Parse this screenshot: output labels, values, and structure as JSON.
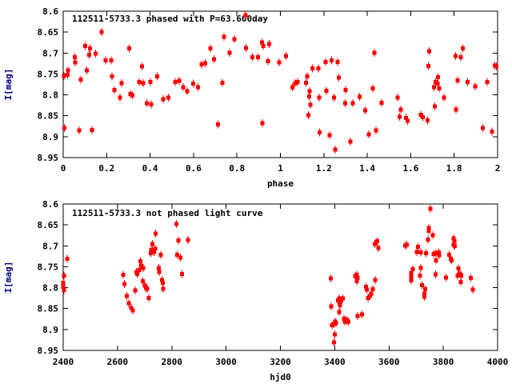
{
  "figure": {
    "background": "#ffffff",
    "point_color": "#ff0000",
    "axis_color": "#000000",
    "text_color": "#000000",
    "ylabel_color": "#000080"
  },
  "chart_data": [
    {
      "type": "scatter",
      "title": "112511-5733.3 phased with P=63.600day",
      "xlabel": "phase",
      "ylabel": "I[mag]",
      "xlim": [
        0,
        2
      ],
      "ylim_top": 8.6,
      "ylim_bottom": 8.95,
      "grid": false,
      "legend": "none",
      "marker": "red-square-with-vertical-errorbar",
      "xticks": [
        {
          "v": 0,
          "label": "0"
        },
        {
          "v": 0.2,
          "label": "0.2"
        },
        {
          "v": 0.4,
          "label": "0.4"
        },
        {
          "v": 0.6,
          "label": "0.6"
        },
        {
          "v": 0.8,
          "label": "0.8"
        },
        {
          "v": 1,
          "label": "1"
        },
        {
          "v": 1.2,
          "label": "1.2"
        },
        {
          "v": 1.4,
          "label": "1.4"
        },
        {
          "v": 1.6,
          "label": "1.6"
        },
        {
          "v": 1.8,
          "label": "1.8"
        },
        {
          "v": 2,
          "label": "2"
        }
      ],
      "yticks": [
        {
          "v": 8.6,
          "label": "8.6"
        },
        {
          "v": 8.65,
          "label": "8.65"
        },
        {
          "v": 8.7,
          "label": "8.7"
        },
        {
          "v": 8.75,
          "label": "8.75"
        },
        {
          "v": 8.8,
          "label": "8.8"
        },
        {
          "v": 8.85,
          "label": "8.85"
        },
        {
          "v": 8.9,
          "label": "8.9"
        },
        {
          "v": 8.95,
          "label": "8.95"
        }
      ],
      "points": [
        [
          0.004,
          8.755
        ],
        [
          0.006,
          8.879
        ],
        [
          0.02,
          8.752
        ],
        [
          0.022,
          8.742
        ],
        [
          0.054,
          8.71
        ],
        [
          0.056,
          8.722
        ],
        [
          0.074,
          8.885
        ],
        [
          0.081,
          8.764
        ],
        [
          0.101,
          8.683
        ],
        [
          0.108,
          8.742
        ],
        [
          0.119,
          8.704
        ],
        [
          0.123,
          8.689
        ],
        [
          0.133,
          8.884
        ],
        [
          0.15,
          8.701
        ],
        [
          0.176,
          8.65
        ],
        [
          0.196,
          8.718
        ],
        [
          0.221,
          8.718
        ],
        [
          0.224,
          8.756
        ],
        [
          0.236,
          8.788
        ],
        [
          0.261,
          8.807
        ],
        [
          0.268,
          8.772
        ],
        [
          0.303,
          8.689
        ],
        [
          0.31,
          8.798
        ],
        [
          0.319,
          8.801
        ],
        [
          0.35,
          8.769
        ],
        [
          0.362,
          8.732
        ],
        [
          0.368,
          8.772
        ],
        [
          0.384,
          8.82
        ],
        [
          0.401,
          8.769
        ],
        [
          0.405,
          8.823
        ],
        [
          0.432,
          8.756
        ],
        [
          0.46,
          8.81
        ],
        [
          0.485,
          8.807
        ],
        [
          0.516,
          8.769
        ],
        [
          0.534,
          8.766
        ],
        [
          0.552,
          8.782
        ],
        [
          0.571,
          8.791
        ],
        [
          0.598,
          8.773
        ],
        [
          0.62,
          8.782
        ],
        [
          0.638,
          8.727
        ],
        [
          0.654,
          8.724
        ],
        [
          0.678,
          8.689
        ],
        [
          0.694,
          8.715
        ],
        [
          0.712,
          8.871
        ],
        [
          0.733,
          8.771
        ],
        [
          0.74,
          8.661
        ],
        [
          0.767,
          8.699
        ],
        [
          0.789,
          8.667
        ],
        [
          0.839,
          8.61
        ],
        [
          0.841,
          8.688
        ],
        [
          0.872,
          8.71
        ],
        [
          0.896,
          8.71
        ],
        [
          0.915,
          8.675
        ],
        [
          0.918,
          8.868
        ],
        [
          0.921,
          8.683
        ],
        [
          0.943,
          8.72
        ],
        [
          0.949,
          8.678
        ],
        [
          0.994,
          8.722
        ],
        [
          1.025,
          8.707
        ],
        [
          1.056,
          8.782
        ],
        [
          1.068,
          8.772
        ],
        [
          1.08,
          8.769
        ],
        [
          1.117,
          8.771
        ],
        [
          1.123,
          8.756
        ],
        [
          1.129,
          8.849
        ],
        [
          1.133,
          8.804
        ],
        [
          1.135,
          8.791
        ],
        [
          1.138,
          8.824
        ],
        [
          1.148,
          8.737
        ],
        [
          1.175,
          8.737
        ],
        [
          1.178,
          8.807
        ],
        [
          1.18,
          8.89
        ],
        [
          1.209,
          8.721
        ],
        [
          1.212,
          8.79
        ],
        [
          1.227,
          8.896
        ],
        [
          1.236,
          8.718
        ],
        [
          1.246,
          8.807
        ],
        [
          1.252,
          8.931
        ],
        [
          1.264,
          8.721
        ],
        [
          1.268,
          8.759
        ],
        [
          1.299,
          8.82
        ],
        [
          1.301,
          8.788
        ],
        [
          1.322,
          8.912
        ],
        [
          1.333,
          8.82
        ],
        [
          1.364,
          8.805
        ],
        [
          1.391,
          8.837
        ],
        [
          1.407,
          8.895
        ],
        [
          1.426,
          8.785
        ],
        [
          1.432,
          8.699
        ],
        [
          1.441,
          8.885
        ],
        [
          1.466,
          8.819
        ],
        [
          1.539,
          8.807
        ],
        [
          1.548,
          8.852
        ],
        [
          1.554,
          8.835
        ],
        [
          1.579,
          8.855
        ],
        [
          1.585,
          8.862
        ],
        [
          1.646,
          8.848
        ],
        [
          1.655,
          8.853
        ],
        [
          1.677,
          8.861
        ],
        [
          1.681,
          8.731
        ],
        [
          1.686,
          8.696
        ],
        [
          1.708,
          8.782
        ],
        [
          1.71,
          8.828
        ],
        [
          1.714,
          8.769
        ],
        [
          1.724,
          8.773
        ],
        [
          1.726,
          8.758
        ],
        [
          1.731,
          8.785
        ],
        [
          1.753,
          8.807
        ],
        [
          1.806,
          8.707
        ],
        [
          1.808,
          8.835
        ],
        [
          1.816,
          8.765
        ],
        [
          1.831,
          8.71
        ],
        [
          1.839,
          8.689
        ],
        [
          1.861,
          8.769
        ],
        [
          1.896,
          8.78
        ],
        [
          1.932,
          8.879
        ],
        [
          1.953,
          8.769
        ],
        [
          1.974,
          8.888
        ],
        [
          1.988,
          8.73
        ],
        [
          1.994,
          8.732
        ]
      ]
    },
    {
      "type": "scatter",
      "title": "112511-5733.3 not phased light curve",
      "xlabel": "hjd0",
      "ylabel": "I[mag]",
      "xlim": [
        2400,
        4000
      ],
      "ylim_top": 8.6,
      "ylim_bottom": 8.95,
      "grid": false,
      "legend": "none",
      "marker": "red-square-with-vertical-errorbar",
      "xticks": [
        {
          "v": 2400,
          "label": "2400"
        },
        {
          "v": 2600,
          "label": "2600"
        },
        {
          "v": 2800,
          "label": "2800"
        },
        {
          "v": 3000,
          "label": "3000"
        },
        {
          "v": 3200,
          "label": "3200"
        },
        {
          "v": 3400,
          "label": "3400"
        },
        {
          "v": 3600,
          "label": "3600"
        },
        {
          "v": 3800,
          "label": "3800"
        },
        {
          "v": 4000,
          "label": "4000"
        }
      ],
      "yticks": [
        {
          "v": 8.6,
          "label": "8.6"
        },
        {
          "v": 8.65,
          "label": "8.65"
        },
        {
          "v": 8.7,
          "label": "8.7"
        },
        {
          "v": 8.75,
          "label": "8.75"
        },
        {
          "v": 8.8,
          "label": "8.8"
        },
        {
          "v": 8.85,
          "label": "8.85"
        },
        {
          "v": 8.9,
          "label": "8.9"
        },
        {
          "v": 8.95,
          "label": "8.95"
        }
      ],
      "points": [
        [
          2400,
          8.788
        ],
        [
          2400,
          8.798
        ],
        [
          2403,
          8.771
        ],
        [
          2403,
          8.806
        ],
        [
          2415,
          8.731
        ],
        [
          2621,
          8.769
        ],
        [
          2626,
          8.791
        ],
        [
          2634,
          8.82
        ],
        [
          2641,
          8.837
        ],
        [
          2651,
          8.849
        ],
        [
          2657,
          8.854
        ],
        [
          2665,
          8.807
        ],
        [
          2670,
          8.763
        ],
        [
          2673,
          8.767
        ],
        [
          2680,
          8.758
        ],
        [
          2685,
          8.737
        ],
        [
          2688,
          8.747
        ],
        [
          2693,
          8.785
        ],
        [
          2695,
          8.753
        ],
        [
          2700,
          8.795
        ],
        [
          2705,
          8.801
        ],
        [
          2710,
          8.803
        ],
        [
          2715,
          8.825
        ],
        [
          2722,
          8.718
        ],
        [
          2724,
          8.71
        ],
        [
          2729,
          8.696
        ],
        [
          2734,
          8.715
        ],
        [
          2739,
          8.707
        ],
        [
          2741,
          8.671
        ],
        [
          2752,
          8.753
        ],
        [
          2754,
          8.763
        ],
        [
          2759,
          8.721
        ],
        [
          2764,
          8.782
        ],
        [
          2767,
          8.788
        ],
        [
          2769,
          8.803
        ],
        [
          2817,
          8.648
        ],
        [
          2820,
          8.721
        ],
        [
          2824,
          8.687
        ],
        [
          2832,
          8.728
        ],
        [
          2837,
          8.767
        ],
        [
          2860,
          8.686
        ],
        [
          3385,
          8.778
        ],
        [
          3387,
          8.845
        ],
        [
          3390,
          8.89
        ],
        [
          3397,
          8.887
        ],
        [
          3397,
          8.931
        ],
        [
          3400,
          8.912
        ],
        [
          3402,
          8.881
        ],
        [
          3405,
          8.885
        ],
        [
          3412,
          8.83
        ],
        [
          3417,
          8.826
        ],
        [
          3417,
          8.858
        ],
        [
          3420,
          8.842
        ],
        [
          3421,
          8.833
        ],
        [
          3430,
          8.826
        ],
        [
          3434,
          8.874
        ],
        [
          3437,
          8.881
        ],
        [
          3441,
          8.877
        ],
        [
          3446,
          8.879
        ],
        [
          3451,
          8.881
        ],
        [
          3476,
          8.772
        ],
        [
          3481,
          8.769
        ],
        [
          3481,
          8.785
        ],
        [
          3485,
          8.777
        ],
        [
          3485,
          8.868
        ],
        [
          3500,
          8.864
        ],
        [
          3515,
          8.798
        ],
        [
          3518,
          8.805
        ],
        [
          3522,
          8.825
        ],
        [
          3530,
          8.82
        ],
        [
          3535,
          8.814
        ],
        [
          3541,
          8.804
        ],
        [
          3547,
          8.696
        ],
        [
          3549,
          8.782
        ],
        [
          3557,
          8.689
        ],
        [
          3561,
          8.705
        ],
        [
          3660,
          8.699
        ],
        [
          3665,
          8.698
        ],
        [
          3682,
          8.765
        ],
        [
          3682,
          8.773
        ],
        [
          3682,
          8.783
        ],
        [
          3688,
          8.756
        ],
        [
          3702,
          8.715
        ],
        [
          3707,
          8.702
        ],
        [
          3714,
          8.771
        ],
        [
          3717,
          8.716
        ],
        [
          3717,
          8.753
        ],
        [
          3721,
          8.794
        ],
        [
          3731,
          8.814
        ],
        [
          3731,
          8.822
        ],
        [
          3734,
          8.804
        ],
        [
          3737,
          8.718
        ],
        [
          3744,
          8.685
        ],
        [
          3747,
          8.657
        ],
        [
          3747,
          8.664
        ],
        [
          3752,
          8.611
        ],
        [
          3761,
          8.675
        ],
        [
          3764,
          8.72
        ],
        [
          3771,
          8.768
        ],
        [
          3773,
          8.718
        ],
        [
          3773,
          8.735
        ],
        [
          3783,
          8.716
        ],
        [
          3785,
          8.722
        ],
        [
          3810,
          8.776
        ],
        [
          3821,
          8.721
        ],
        [
          3828,
          8.731
        ],
        [
          3831,
          8.735
        ],
        [
          3838,
          8.682
        ],
        [
          3838,
          8.698
        ],
        [
          3841,
          8.689
        ],
        [
          3843,
          8.7
        ],
        [
          3852,
          8.771
        ],
        [
          3855,
          8.754
        ],
        [
          3859,
          8.766
        ],
        [
          3864,
          8.769
        ],
        [
          3864,
          8.786
        ],
        [
          3866,
          8.771
        ],
        [
          3901,
          8.777
        ],
        [
          3909,
          8.805
        ]
      ]
    }
  ]
}
